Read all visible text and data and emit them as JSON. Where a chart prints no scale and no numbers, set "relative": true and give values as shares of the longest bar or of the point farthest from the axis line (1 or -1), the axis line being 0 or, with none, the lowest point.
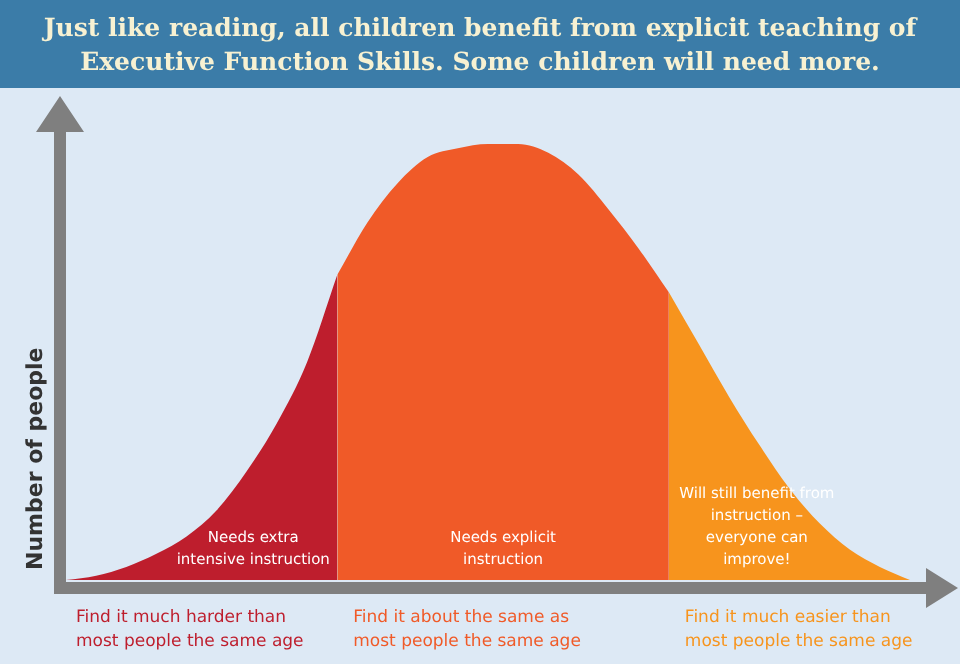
{
  "chart_data": {
    "type": "area",
    "relative": true,
    "title": "Just like reading, all children benefit from explicit teaching of Executive Function Skills. Some children will need more.",
    "ylabel": "Number of people",
    "categories": [
      null,
      null,
      null,
      null,
      null,
      null,
      null,
      null,
      null,
      null,
      null,
      null,
      null,
      null,
      null,
      null,
      null,
      null,
      null,
      null,
      null,
      null,
      null,
      null,
      null,
      null,
      null,
      null,
      null
    ],
    "series": [
      {
        "color": "#be1e2d",
        "values": [
          0,
          0.01,
          0.03,
          0.06,
          0.1,
          0.16,
          0.25,
          0.36,
          0.5,
          0.7,
          null,
          null,
          null,
          null,
          null,
          null,
          null,
          null,
          null,
          null,
          null,
          null,
          null,
          null,
          null,
          null,
          null,
          null,
          null
        ]
      },
      {
        "color": "#f05a28",
        "values": [
          null,
          null,
          null,
          null,
          null,
          null,
          null,
          null,
          null,
          0.7,
          0.82,
          0.91,
          0.97,
          0.99,
          1,
          1,
          0.98,
          0.93,
          0.85,
          0.76,
          0.66,
          null,
          null,
          null,
          null,
          null,
          null,
          null,
          null
        ]
      },
      {
        "color": "#f7941d",
        "values": [
          null,
          null,
          null,
          null,
          null,
          null,
          null,
          null,
          null,
          null,
          null,
          null,
          null,
          null,
          null,
          null,
          null,
          null,
          null,
          null,
          0.66,
          0.54,
          0.42,
          0.31,
          0.21,
          0.13,
          0.07,
          0.03,
          0
        ]
      }
    ],
    "annotations": [
      "Needs extra intensive instruction",
      "Needs explicit instruction",
      "Will still benefit from instruction – everyone can improve!",
      "Find it much harder than most people the same age",
      "Find it about the same as most people the same age",
      "Find it much easier than most people the same age"
    ],
    "legend": false,
    "marker": "none"
  }
}
